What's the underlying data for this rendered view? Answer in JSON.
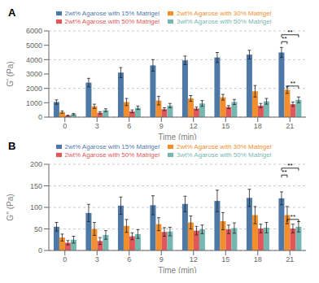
{
  "chart_data": [
    {
      "type": "bar",
      "title": "A",
      "x_label": "Time (min)",
      "y_label": "G' (Pa)",
      "categories": [
        0,
        3,
        6,
        9,
        12,
        15,
        18,
        21
      ],
      "series": [
        {
          "name": "2wt% Agarose with 15% Matrigel",
          "color": "#4e79a7",
          "values": [
            1050,
            2400,
            3100,
            3600,
            3950,
            4150,
            4350,
            4500
          ],
          "errors": [
            150,
            300,
            350,
            400,
            300,
            350,
            300,
            350
          ]
        },
        {
          "name": "2wt% Agarose with 30% Matrigel",
          "color": "#f28e2b",
          "values": [
            350,
            750,
            1050,
            1150,
            1300,
            1380,
            1800,
            1900
          ],
          "errors": [
            80,
            150,
            250,
            300,
            200,
            200,
            400,
            250
          ]
        },
        {
          "name": "2wt% Agarose with 50% Matrigel",
          "color": "#e15759",
          "values": [
            100,
            300,
            400,
            550,
            600,
            700,
            800,
            900
          ],
          "errors": [
            30,
            80,
            100,
            100,
            100,
            100,
            150,
            150
          ]
        },
        {
          "name": "3wt% Agarose with 50% Matrigel",
          "color": "#76b7b2",
          "values": [
            200,
            480,
            650,
            800,
            950,
            1050,
            1100,
            1200
          ],
          "errors": [
            50,
            100,
            120,
            150,
            200,
            180,
            200,
            200
          ]
        }
      ],
      "ylim": [
        0,
        6000
      ],
      "yticks": [
        0,
        1000,
        2000,
        3000,
        4000,
        5000,
        6000
      ],
      "legend": "top",
      "annotations": [
        {
          "text": "**",
          "category": 21,
          "from": "2wt% Agarose with 15% Matrigel",
          "to": "3wt% Agarose with 50% Matrigel",
          "y": 5730
        },
        {
          "text": "**",
          "category": 21,
          "from": "2wt% Agarose with 15% Matrigel",
          "to": "2wt% Agarose with 30% Matrigel",
          "y": 5250
        },
        {
          "text": "**",
          "category": 21,
          "from": "2wt% Agarose with 30% Matrigel",
          "to": "3wt% Agarose with 50% Matrigel",
          "y": 2160
        }
      ]
    },
    {
      "type": "bar",
      "title": "B",
      "x_label": "Time (min)",
      "y_label": "G'' (Pa)",
      "categories": [
        0,
        3,
        6,
        9,
        12,
        15,
        18,
        21
      ],
      "series": [
        {
          "name": "2wt% Agarose with 15% Matrigel",
          "color": "#4e79a7",
          "values": [
            55,
            87,
            104,
            105,
            108,
            115,
            122,
            121
          ],
          "errors": [
            10,
            20,
            20,
            22,
            18,
            25,
            20,
            15
          ]
        },
        {
          "name": "2wt% Agarose with 30% Matrigel",
          "color": "#f28e2b",
          "values": [
            30,
            50,
            57,
            61,
            65,
            68,
            82,
            82
          ],
          "errors": [
            8,
            15,
            15,
            15,
            15,
            20,
            20,
            20
          ]
        },
        {
          "name": "2wt% Agarose with 50% Matrigel",
          "color": "#e15759",
          "values": [
            18,
            22,
            33,
            43,
            46,
            49,
            51,
            51
          ],
          "errors": [
            5,
            8,
            8,
            10,
            10,
            10,
            10,
            10
          ]
        },
        {
          "name": "3wt% Agarose with 50% Matrigel",
          "color": "#76b7b2",
          "values": [
            25,
            36,
            38,
            44,
            49,
            52,
            53,
            55
          ],
          "errors": [
            8,
            10,
            10,
            10,
            10,
            12,
            12,
            12
          ]
        }
      ],
      "ylim": [
        0,
        200
      ],
      "yticks": [
        0,
        50,
        100,
        150,
        200
      ],
      "legend": "top",
      "annotations": [
        {
          "text": "**",
          "category": 21,
          "from": "2wt% Agarose with 15% Matrigel",
          "to": "3wt% Agarose with 50% Matrigel",
          "y": 191
        },
        {
          "text": "**",
          "category": 21,
          "from": "2wt% Agarose with 15% Matrigel",
          "to": "2wt% Agarose with 30% Matrigel",
          "y": 175
        },
        {
          "text": "**",
          "category": 21,
          "from": "2wt% Agarose with 30% Matrigel",
          "to": "3wt% Agarose with 50% Matrigel",
          "y": 72
        }
      ]
    }
  ]
}
